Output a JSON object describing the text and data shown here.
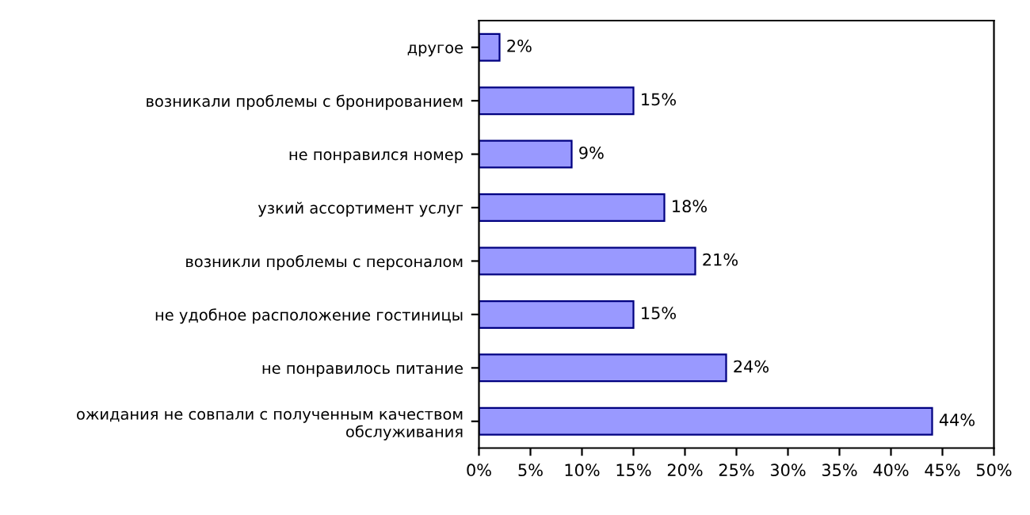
{
  "chart_data": {
    "type": "bar",
    "orientation": "horizontal",
    "categories": [
      "другое",
      "возникали проблемы с бронированием",
      "не понравился номер",
      "узкий ассортимент услуг",
      "возникли проблемы с персоналом",
      "не удобное расположение гостиницы",
      "не понравилось питание",
      "ожидания не совпали с полученным качеством обслуживания"
    ],
    "values": [
      2,
      15,
      9,
      18,
      21,
      15,
      24,
      44
    ],
    "value_labels": [
      "2%",
      "15%",
      "9%",
      "18%",
      "21%",
      "15%",
      "24%",
      "44%"
    ],
    "color": "#9999ff",
    "xlim": [
      0,
      50
    ],
    "xticks": [
      {
        "value": 0,
        "label": "0%"
      },
      {
        "value": 5,
        "label": "5%"
      },
      {
        "value": 10,
        "label": "10%"
      },
      {
        "value": 15,
        "label": "15%"
      },
      {
        "value": 20,
        "label": "20%"
      },
      {
        "value": 25,
        "label": "25%"
      },
      {
        "value": 30,
        "label": "30%"
      },
      {
        "value": 35,
        "label": "35%"
      },
      {
        "value": 40,
        "label": "40%"
      },
      {
        "value": 45,
        "label": "45%"
      },
      {
        "value": 50,
        "label": "50%"
      }
    ],
    "grid": false,
    "legend": false
  }
}
